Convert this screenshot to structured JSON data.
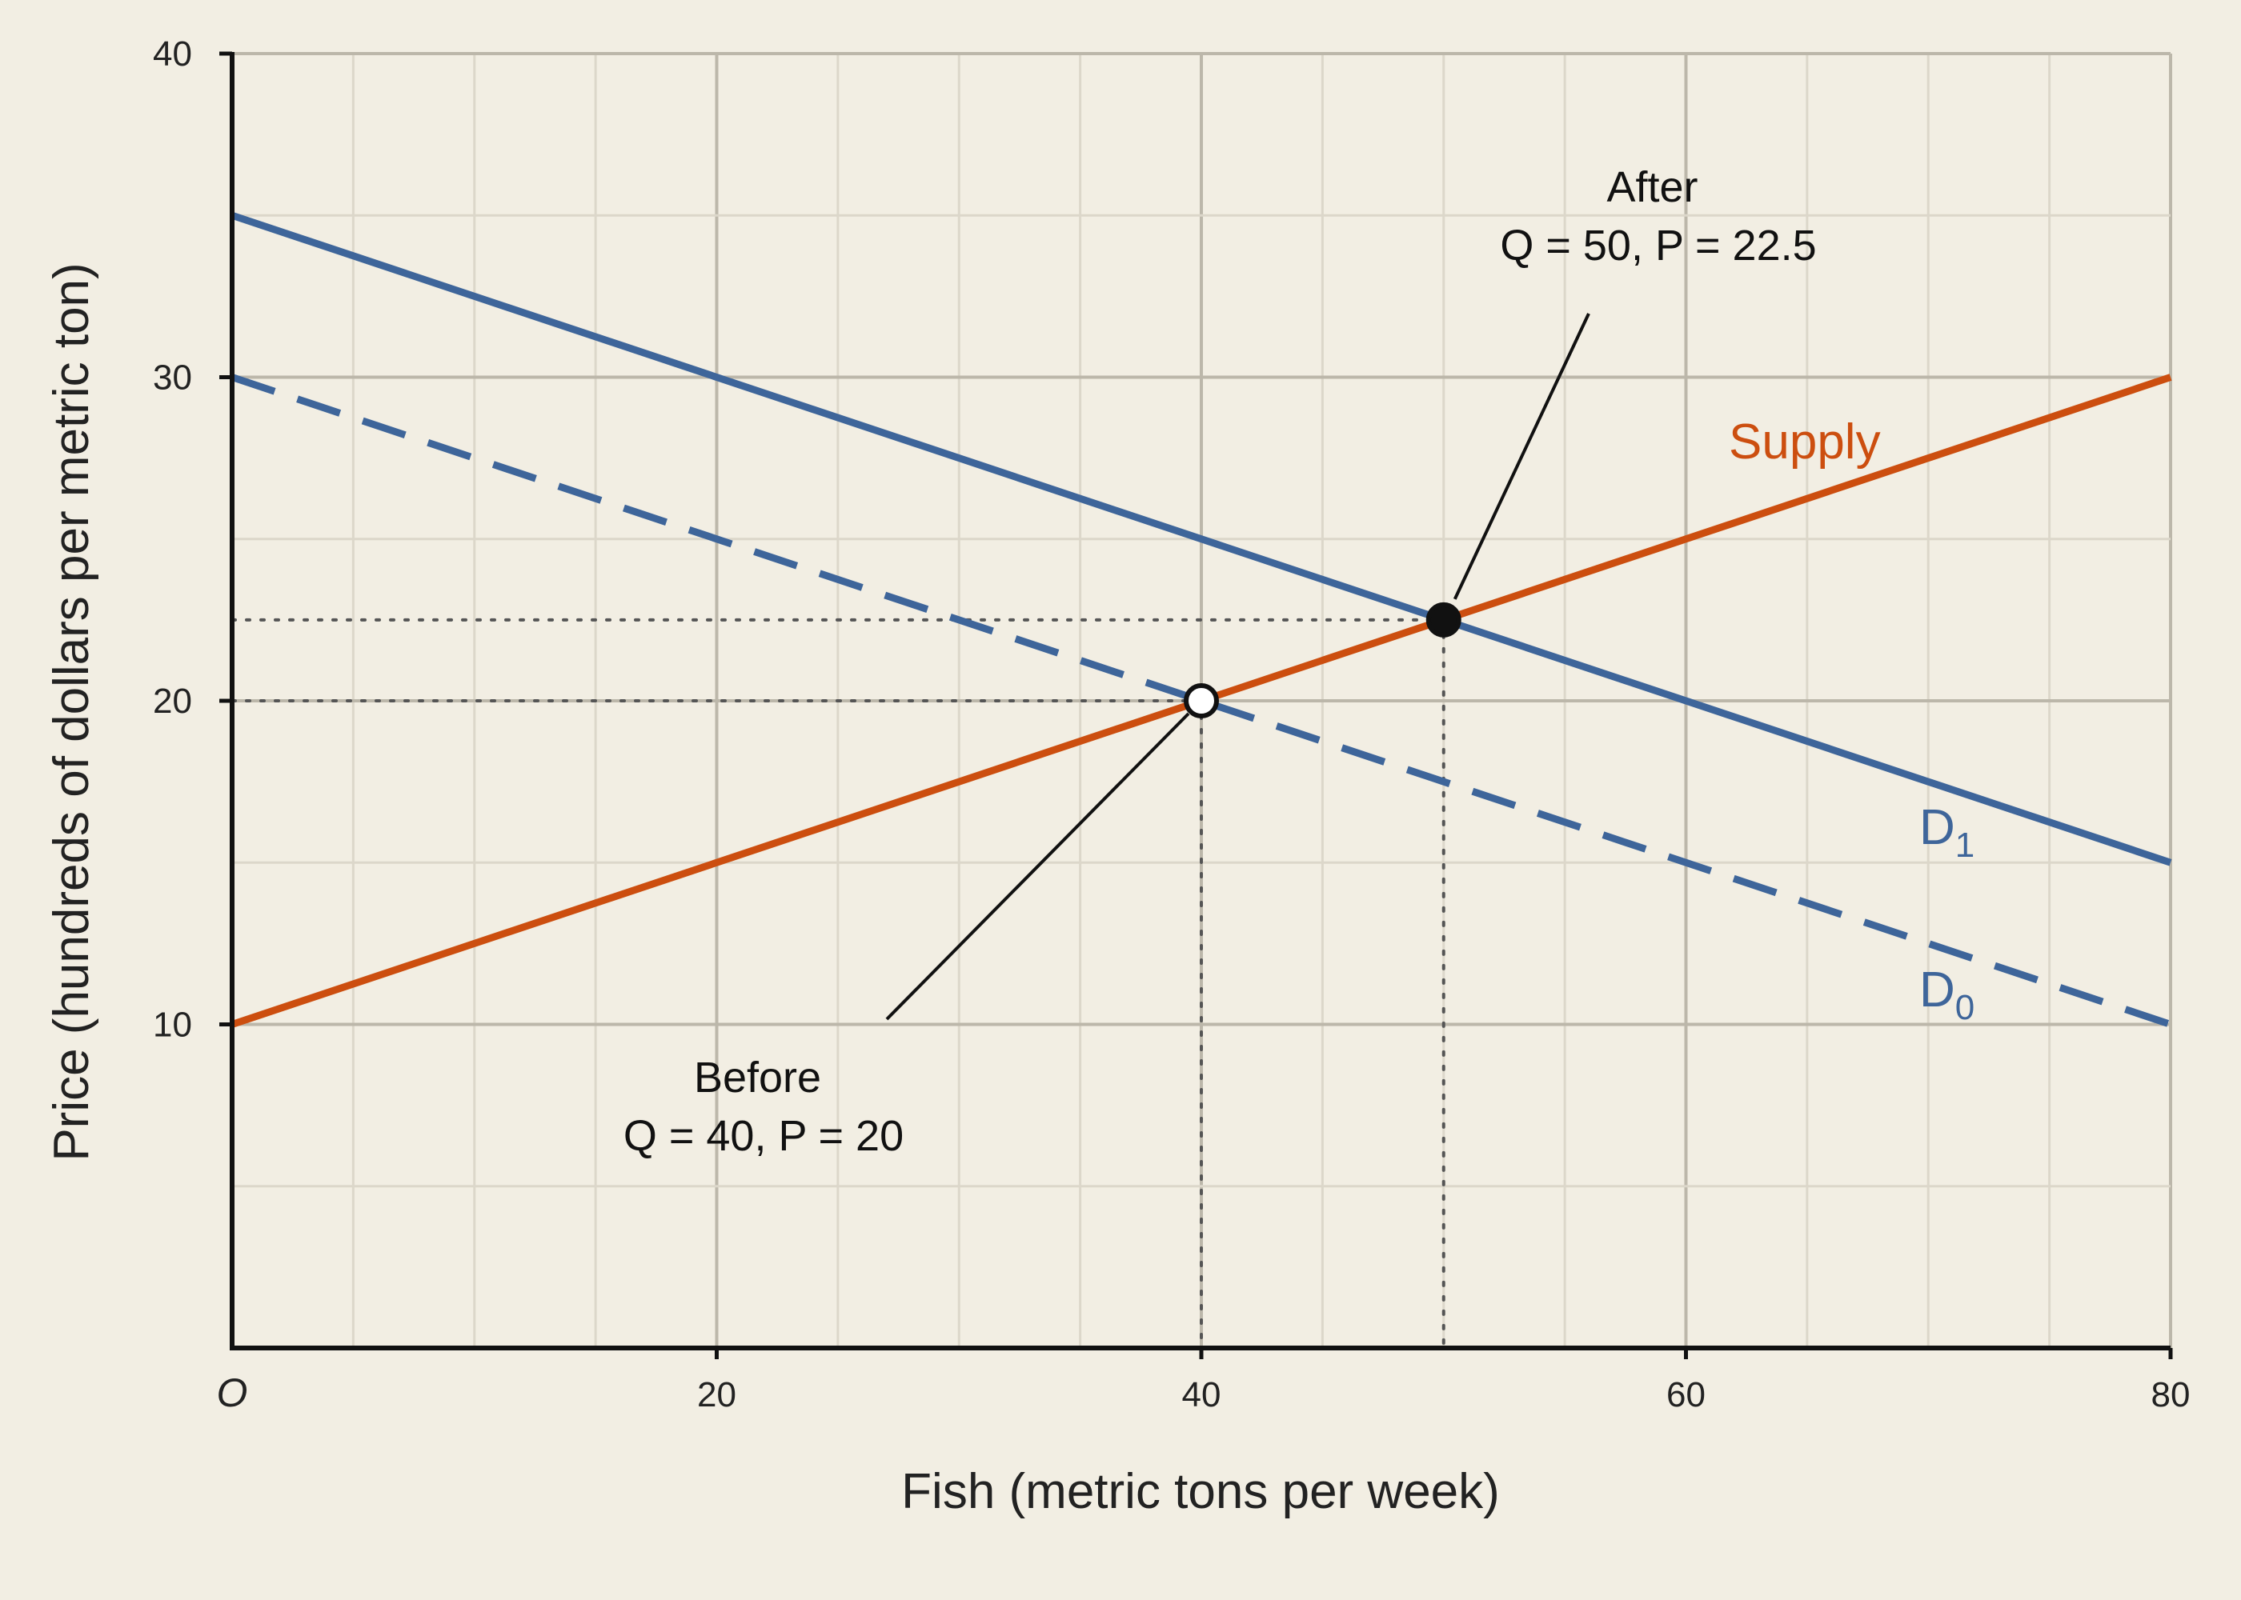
{
  "chart_data": {
    "type": "line",
    "xlabel": "Fish (metric tons per week)",
    "ylabel": "Price (hundreds of dollars per metric ton)",
    "xlim": [
      0,
      80
    ],
    "ylim": [
      0,
      40
    ],
    "x_ticks": [
      20,
      40,
      60,
      80
    ],
    "y_ticks": [
      10,
      20,
      30,
      40
    ],
    "origin_label": "O",
    "grid": true,
    "minor_grid_step": 5,
    "background_color": "#f2eee3",
    "series": [
      {
        "id": "supply",
        "name": "Supply",
        "color": "#cc4e0f",
        "style": "solid",
        "points": [
          [
            0,
            10
          ],
          [
            80,
            30
          ]
        ]
      },
      {
        "id": "d1",
        "name": "D",
        "subscript": "1",
        "color": "#3e659a",
        "style": "solid",
        "points": [
          [
            0,
            35
          ],
          [
            80,
            15
          ]
        ]
      },
      {
        "id": "d0",
        "name": "D",
        "subscript": "0",
        "color": "#3e659a",
        "style": "dashed",
        "points": [
          [
            0,
            30
          ],
          [
            80,
            10
          ]
        ]
      }
    ],
    "equilibria": [
      {
        "id": "before",
        "x": 40,
        "y": 20,
        "filled": false,
        "label_line1": "Before",
        "label_line2": "Q = 40, P = 20"
      },
      {
        "id": "after",
        "x": 50,
        "y": 22.5,
        "filled": true,
        "label_line1": "After",
        "label_line2": "Q = 50, P = 22.5"
      }
    ]
  }
}
